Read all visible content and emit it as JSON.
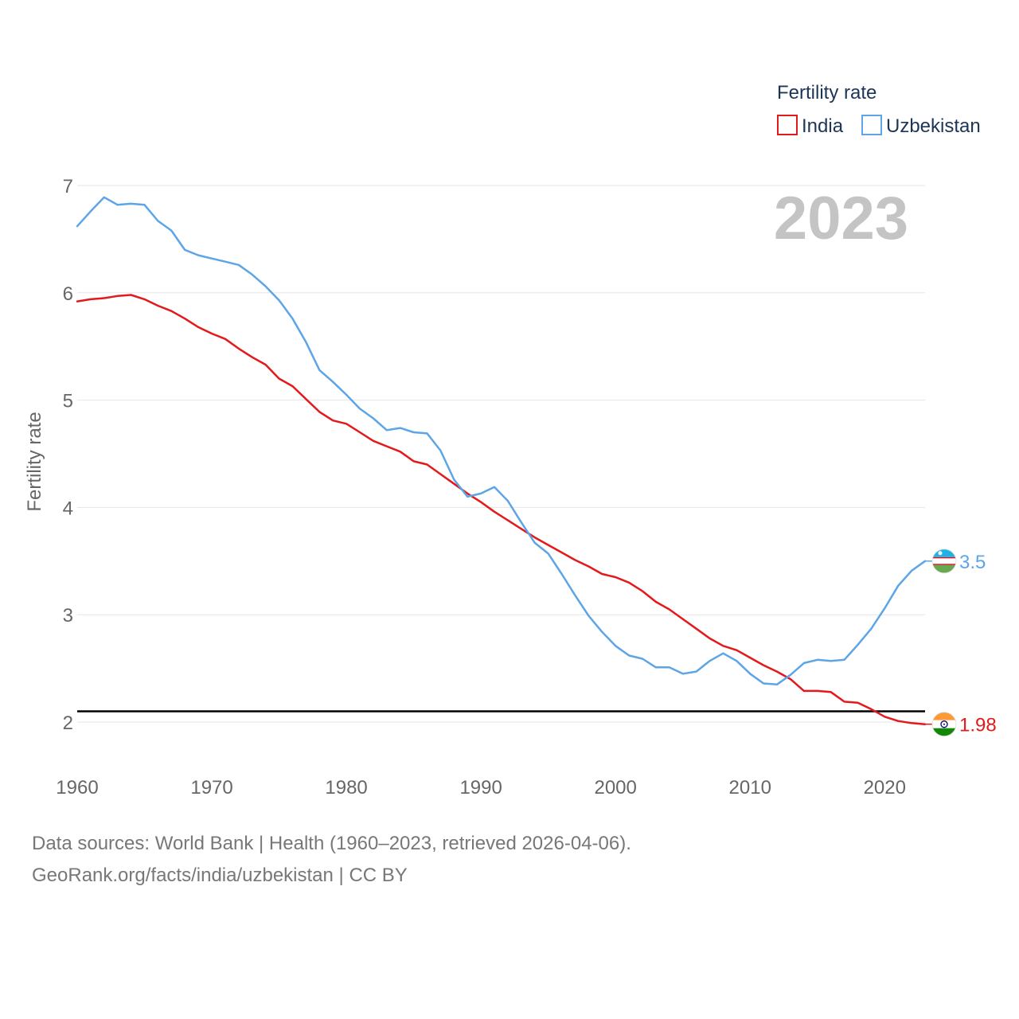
{
  "chart_data": {
    "type": "line",
    "title": "",
    "legend_title": "Fertility rate",
    "legend_position": "top-right",
    "ylabel": "Fertility rate",
    "xlabel": "",
    "xlim": [
      1960,
      2023
    ],
    "ylim": [
      1.5,
      7.1
    ],
    "x_ticks": [
      1960,
      1970,
      1980,
      1990,
      2000,
      2010,
      2020
    ],
    "y_ticks": [
      2,
      3,
      4,
      5,
      6,
      7
    ],
    "grid": true,
    "current_year": "2023",
    "reference_line": 2.1,
    "years": [
      1960,
      1961,
      1962,
      1963,
      1964,
      1965,
      1966,
      1967,
      1968,
      1969,
      1970,
      1971,
      1972,
      1973,
      1974,
      1975,
      1976,
      1977,
      1978,
      1979,
      1980,
      1981,
      1982,
      1983,
      1984,
      1985,
      1986,
      1987,
      1988,
      1989,
      1990,
      1991,
      1992,
      1993,
      1994,
      1995,
      1996,
      1997,
      1998,
      1999,
      2000,
      2001,
      2002,
      2003,
      2004,
      2005,
      2006,
      2007,
      2008,
      2009,
      2010,
      2011,
      2012,
      2013,
      2014,
      2015,
      2016,
      2017,
      2018,
      2019,
      2020,
      2021,
      2022,
      2023
    ],
    "series": [
      {
        "name": "India",
        "color": "#e31a1c",
        "end_label": "1.98",
        "flag_icon": "india-flag-icon",
        "values": [
          5.92,
          5.94,
          5.95,
          5.97,
          5.98,
          5.94,
          5.88,
          5.83,
          5.76,
          5.68,
          5.62,
          5.57,
          5.48,
          5.4,
          5.33,
          5.2,
          5.13,
          5.01,
          4.89,
          4.81,
          4.78,
          4.7,
          4.62,
          4.57,
          4.52,
          4.43,
          4.4,
          4.31,
          4.22,
          4.13,
          4.05,
          3.96,
          3.88,
          3.8,
          3.72,
          3.65,
          3.58,
          3.51,
          3.45,
          3.38,
          3.35,
          3.3,
          3.22,
          3.12,
          3.05,
          2.96,
          2.87,
          2.78,
          2.71,
          2.67,
          2.6,
          2.53,
          2.47,
          2.4,
          2.29,
          2.29,
          2.28,
          2.19,
          2.18,
          2.12,
          2.05,
          2.01,
          1.99,
          1.98
        ]
      },
      {
        "name": "Uzbekistan",
        "color": "#5da5e6",
        "end_label": "3.5",
        "flag_icon": "uzbekistan-flag-icon",
        "values": [
          6.62,
          6.76,
          6.89,
          6.82,
          6.83,
          6.82,
          6.67,
          6.58,
          6.4,
          6.35,
          6.32,
          6.29,
          6.26,
          6.17,
          6.06,
          5.93,
          5.76,
          5.54,
          5.28,
          5.17,
          5.05,
          4.92,
          4.83,
          4.72,
          4.74,
          4.7,
          4.69,
          4.53,
          4.26,
          4.1,
          4.13,
          4.19,
          4.06,
          3.86,
          3.67,
          3.57,
          3.38,
          3.18,
          2.99,
          2.84,
          2.71,
          2.62,
          2.59,
          2.51,
          2.51,
          2.45,
          2.47,
          2.57,
          2.64,
          2.57,
          2.45,
          2.36,
          2.35,
          2.44,
          2.55,
          2.58,
          2.57,
          2.58,
          2.72,
          2.87,
          3.06,
          3.27,
          3.41,
          3.5
        ]
      }
    ]
  },
  "footer": {
    "source_line": "Data sources: World Bank | Health (1960–2023, retrieved 2026-04-06).",
    "credit_line": "GeoRank.org/facts/india/uzbekistan | CC BY"
  }
}
